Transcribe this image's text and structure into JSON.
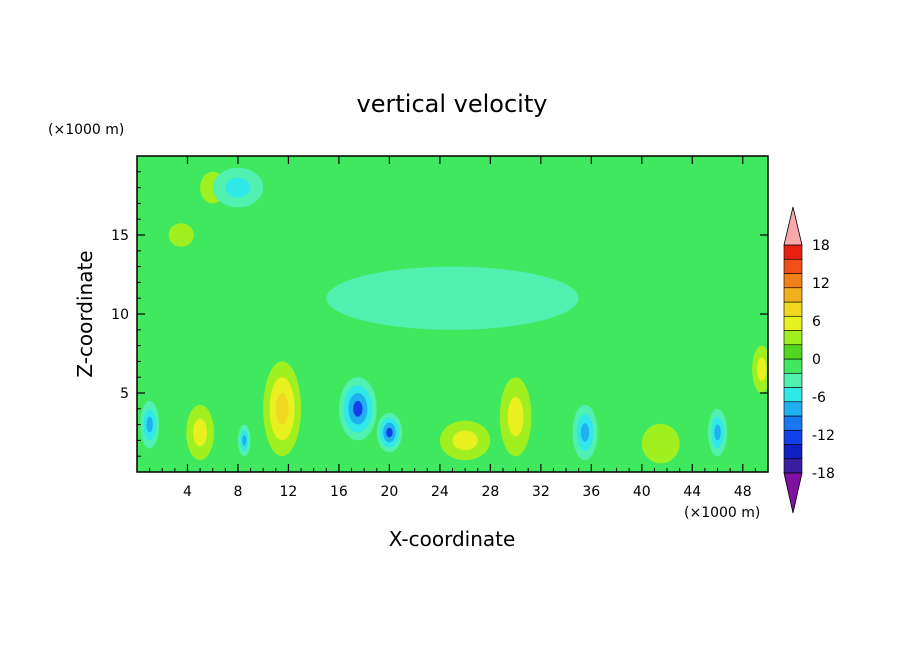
{
  "chart_data": {
    "type": "heatmap",
    "title": "vertical velocity",
    "xlabel": "X-coordinate",
    "ylabel": "Z-coordinate",
    "x_unit": "(×1000 m)",
    "y_unit": "(×1000 m)",
    "xlim": [
      0,
      50
    ],
    "ylim": [
      0,
      20
    ],
    "x_ticks": [
      "4",
      "8",
      "12",
      "16",
      "20",
      "24",
      "28",
      "32",
      "36",
      "40",
      "44",
      "48"
    ],
    "y_ticks": [
      "5",
      "10",
      "15"
    ],
    "grid": false,
    "colorbar": {
      "placement": "right",
      "range": [
        -21,
        21
      ],
      "step": 3,
      "tick_labels": [
        "18",
        "12",
        "6",
        "0",
        "-6",
        "-12",
        "-18"
      ],
      "colors": [
        "#7b10a8",
        "#3a1fa0",
        "#1020c0",
        "#1040e8",
        "#1878f0",
        "#20b0f0",
        "#30e8e8",
        "#50f0b0",
        "#40e860",
        "#50d820",
        "#a0f020",
        "#e8f020",
        "#f0d820",
        "#f0b020",
        "#f08018",
        "#f05018",
        "#e82010",
        "#f8a8a8"
      ],
      "extend_colors": {
        "min": "#8010a0",
        "max": "#f8a8a8"
      }
    },
    "features": [
      {
        "x": 5.0,
        "z": 2.5,
        "value": 7,
        "width": 2.2,
        "height": 3.5
      },
      {
        "x": 11.5,
        "z": 4.0,
        "value": 9,
        "width": 3.0,
        "height": 6.0
      },
      {
        "x": 26.0,
        "z": 2.0,
        "value": 6,
        "width": 4.0,
        "height": 2.5
      },
      {
        "x": 30.0,
        "z": 3.5,
        "value": 7,
        "width": 2.5,
        "height": 5.0
      },
      {
        "x": 41.5,
        "z": 1.8,
        "value": 3,
        "width": 3.0,
        "height": 2.5
      },
      {
        "x": 49.5,
        "z": 6.5,
        "value": 5,
        "width": 1.5,
        "height": 3.0
      },
      {
        "x": 6.0,
        "z": 18.0,
        "value": 4,
        "width": 2.0,
        "height": 2.0
      },
      {
        "x": 3.5,
        "z": 15.0,
        "value": 4,
        "width": 2.0,
        "height": 1.5
      },
      {
        "x": 1.0,
        "z": 3.0,
        "value": -8,
        "width": 1.5,
        "height": 3.0
      },
      {
        "x": 8.5,
        "z": 2.0,
        "value": -8,
        "width": 1.0,
        "height": 2.0
      },
      {
        "x": 17.5,
        "z": 4.0,
        "value": -12,
        "width": 3.0,
        "height": 4.0
      },
      {
        "x": 20.0,
        "z": 2.5,
        "value": -11,
        "width": 2.0,
        "height": 2.5
      },
      {
        "x": 35.5,
        "z": 2.5,
        "value": -10,
        "width": 2.0,
        "height": 3.5
      },
      {
        "x": 46.0,
        "z": 2.5,
        "value": -8,
        "width": 1.5,
        "height": 3.0
      },
      {
        "x": 8.0,
        "z": 18.0,
        "value": -5,
        "width": 4.0,
        "height": 2.5
      },
      {
        "x": 25.0,
        "z": 11.0,
        "value": -3,
        "width": 20.0,
        "height": 4.0
      }
    ]
  }
}
